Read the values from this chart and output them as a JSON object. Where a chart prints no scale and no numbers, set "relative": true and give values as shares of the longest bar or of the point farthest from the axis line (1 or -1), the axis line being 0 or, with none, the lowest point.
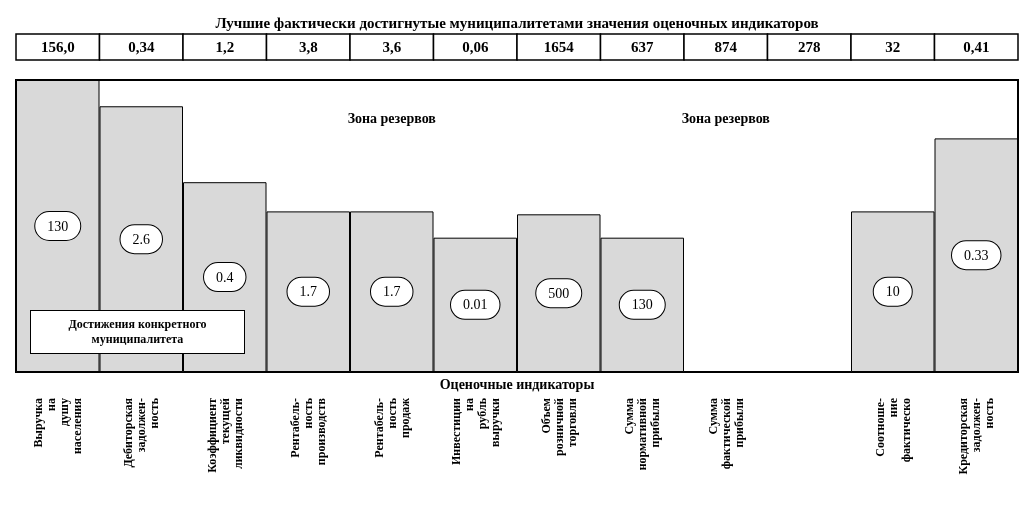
{
  "chart_data": {
    "type": "bar",
    "relative": true,
    "title": "Лучшие фактически достигнутые муниципалитетами значения оценочных индикаторов",
    "xlabel": "Оценочные индикаторы",
    "categories": [
      "Выручка на душу населения",
      "Дебиторская задолжен-ность",
      "Коэффициент текущей ликвидности",
      "Рентабель-ность производств",
      "Рентабель-ность продаж",
      "Инвестиции на рубль выручки",
      "Объем розничной торговли",
      "Сумма нормативной прибыли",
      "Сумма фактической прибыли",
      null,
      "Соотноше-ние фактическо",
      "Кредиторская задолжен-ность"
    ],
    "series": [
      {
        "color": "#d9d9d9",
        "values": [
          1.0,
          0.91,
          0.65,
          0.55,
          0.55,
          0.46,
          0.54,
          0.46,
          null,
          null,
          0.55,
          0.8
        ]
      }
    ],
    "annotations": [
      "156,0",
      "0,34",
      "1,2",
      "3,8",
      "3,6",
      "0,06",
      "1654",
      "637",
      "874",
      "278",
      "32",
      "0,41",
      "130",
      "2.6",
      "0.4",
      "1.7",
      "1.7",
      "0.01",
      "500",
      "130",
      "10",
      "0.33",
      "Зона резервов",
      "Зона резервов",
      "Достижения конкретного муниципалитета"
    ]
  }
}
